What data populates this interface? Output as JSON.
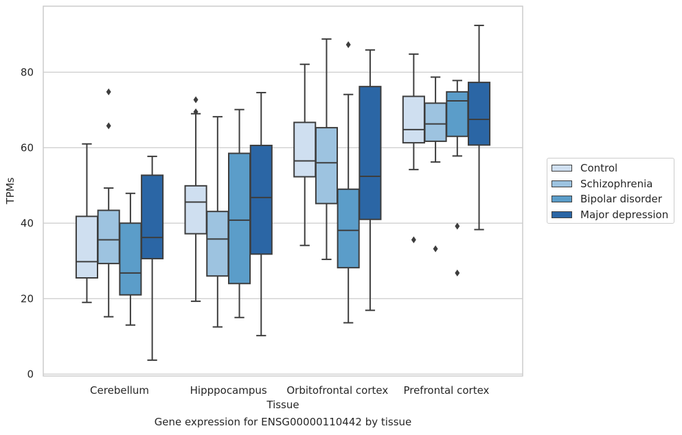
{
  "chart_data": {
    "type": "box",
    "xlabel": "Tissue",
    "ylabel": "TPMs",
    "ylim": [
      -0.5,
      97.5
    ],
    "yticks": [
      0,
      20,
      40,
      60,
      80
    ],
    "grid": "horizontal",
    "legend_position": "outside-right",
    "categories": [
      "Cerebellum",
      "Hipppocampus",
      "Orbitofrontal cortex",
      "Prefrontal cortex"
    ],
    "series": [
      {
        "name": "Control",
        "color": "#cfdff0",
        "boxes": [
          {
            "whisker_low": 19.0,
            "q1": 25.5,
            "median": 29.8,
            "q3": 41.8,
            "whisker_high": 61.0,
            "outliers": []
          },
          {
            "whisker_low": 19.3,
            "q1": 37.2,
            "median": 45.6,
            "q3": 49.9,
            "whisker_high": 69.0,
            "outliers": [
              69.5,
              72.7
            ]
          },
          {
            "whisker_low": 34.1,
            "q1": 52.3,
            "median": 56.5,
            "q3": 66.7,
            "whisker_high": 82.1,
            "outliers": []
          },
          {
            "whisker_low": 54.2,
            "q1": 61.3,
            "median": 64.8,
            "q3": 73.6,
            "whisker_high": 84.8,
            "outliers": [
              35.6
            ]
          }
        ]
      },
      {
        "name": "Schizophrenia",
        "color": "#9dc3e0",
        "boxes": [
          {
            "whisker_low": 15.2,
            "q1": 29.3,
            "median": 35.6,
            "q3": 43.4,
            "whisker_high": 49.3,
            "outliers": [
              65.8,
              74.8
            ]
          },
          {
            "whisker_low": 12.5,
            "q1": 26.0,
            "median": 35.8,
            "q3": 43.1,
            "whisker_high": 68.2,
            "outliers": []
          },
          {
            "whisker_low": 30.4,
            "q1": 45.2,
            "median": 56.0,
            "q3": 65.3,
            "whisker_high": 88.8,
            "outliers": []
          },
          {
            "whisker_low": 56.2,
            "q1": 61.7,
            "median": 66.3,
            "q3": 71.8,
            "whisker_high": 78.7,
            "outliers": [
              33.2
            ]
          }
        ]
      },
      {
        "name": "Bipolar disorder",
        "color": "#5b9dc9",
        "boxes": [
          {
            "whisker_low": 13.0,
            "q1": 21.0,
            "median": 26.8,
            "q3": 40.0,
            "whisker_high": 47.9,
            "outliers": []
          },
          {
            "whisker_low": 15.0,
            "q1": 24.0,
            "median": 40.8,
            "q3": 58.5,
            "whisker_high": 70.1,
            "outliers": []
          },
          {
            "whisker_low": 13.6,
            "q1": 28.2,
            "median": 38.1,
            "q3": 49.0,
            "whisker_high": 74.1,
            "outliers": [
              87.3
            ]
          },
          {
            "whisker_low": 57.8,
            "q1": 63.0,
            "median": 72.4,
            "q3": 74.8,
            "whisker_high": 77.8,
            "outliers": [
              39.2,
              26.8
            ]
          }
        ]
      },
      {
        "name": "Major depression",
        "color": "#2b66a5",
        "boxes": [
          {
            "whisker_low": 3.7,
            "q1": 30.6,
            "median": 36.2,
            "q3": 52.7,
            "whisker_high": 57.7,
            "outliers": []
          },
          {
            "whisker_low": 10.2,
            "q1": 31.8,
            "median": 46.8,
            "q3": 60.6,
            "whisker_high": 74.6,
            "outliers": []
          },
          {
            "whisker_low": 16.9,
            "q1": 41.0,
            "median": 52.4,
            "q3": 76.2,
            "whisker_high": 85.9,
            "outliers": []
          },
          {
            "whisker_low": 38.3,
            "q1": 60.7,
            "median": 67.5,
            "q3": 77.3,
            "whisker_high": 92.4,
            "outliers": []
          }
        ]
      }
    ]
  },
  "caption": "Gene expression for ENSG00000110442 by tissue"
}
